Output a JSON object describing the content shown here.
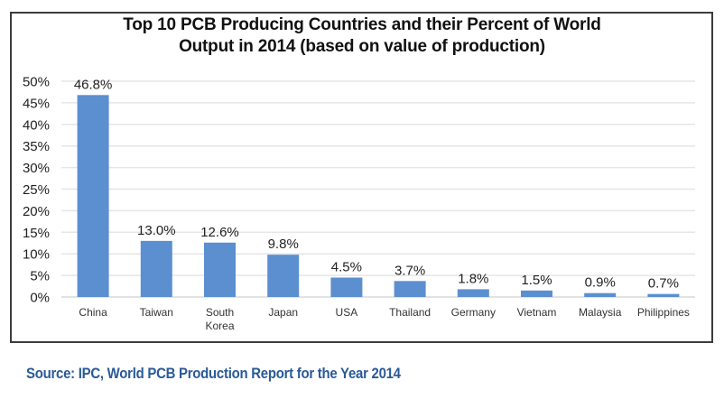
{
  "chart_data": {
    "type": "bar",
    "title": [
      "Top 10 PCB Producing Countries and their Percent of World",
      "Output in 2014 (based on value of production)"
    ],
    "xlabel": "",
    "ylabel": "",
    "categories": [
      "China",
      "Taiwan",
      "South Korea",
      "Japan",
      "USA",
      "Thailand",
      "Germany",
      "Vietnam",
      "Malaysia",
      "Philippines"
    ],
    "category_lines": [
      [
        "China"
      ],
      [
        "Taiwan"
      ],
      [
        "South",
        "Korea"
      ],
      [
        "Japan"
      ],
      [
        "USA"
      ],
      [
        "Thailand"
      ],
      [
        "Germany"
      ],
      [
        "Vietnam"
      ],
      [
        "Malaysia"
      ],
      [
        "Philippines"
      ]
    ],
    "values": [
      46.8,
      13.0,
      12.6,
      9.8,
      4.5,
      3.7,
      1.8,
      1.5,
      0.9,
      0.7
    ],
    "data_labels": [
      "46.8%",
      "13.0%",
      "12.6%",
      "9.8%",
      "4.5%",
      "3.7%",
      "1.8%",
      "1.5%",
      "0.9%",
      "0.7%"
    ],
    "ylim": [
      0,
      50
    ],
    "yticks": [
      0,
      5,
      10,
      15,
      20,
      25,
      30,
      35,
      40,
      45,
      50
    ],
    "ytick_labels": [
      "0%",
      "5%",
      "10%",
      "15%",
      "20%",
      "25%",
      "30%",
      "35%",
      "40%",
      "45%",
      "50%"
    ],
    "grid": true,
    "legend": "none",
    "bar_color": "#5b8fd0"
  },
  "source": "Source: IPC, World PCB Production Report for the Year 2014"
}
